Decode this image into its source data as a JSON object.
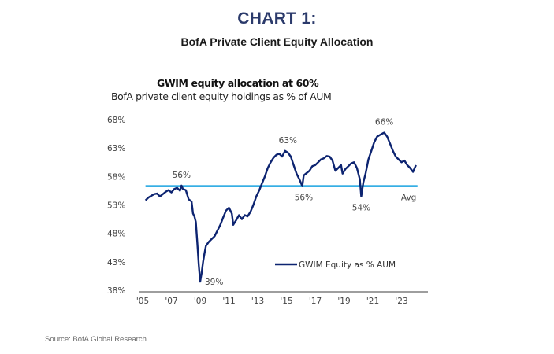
{
  "header": {
    "title": "CHART 1:",
    "subtitle": "BofA Private Client Equity Allocation"
  },
  "source": "Source: BofA Global Research",
  "chart_data": {
    "type": "line",
    "title": "GWIM equity allocation at 60%",
    "subtitle": "BofA private client equity holdings as % of AUM",
    "xlabel": "",
    "ylabel": "",
    "ylim": [
      38,
      68
    ],
    "xlim": [
      2005,
      2025
    ],
    "y_ticks": [
      38,
      43,
      48,
      53,
      58,
      63,
      68
    ],
    "y_tick_labels": [
      "38%",
      "43%",
      "48%",
      "53%",
      "58%",
      "63%",
      "68%"
    ],
    "x_ticks": [
      2005,
      2007,
      2009,
      2011,
      2013,
      2015,
      2017,
      2019,
      2021,
      2023
    ],
    "x_tick_labels": [
      "'05",
      "'07",
      "'09",
      "'11",
      "'13",
      "'15",
      "'17",
      "'19",
      "'21",
      "'23"
    ],
    "grid": false,
    "legend": {
      "entries": [
        "GWIM Equity as % AUM"
      ],
      "placement": "bottom-right"
    },
    "colors": {
      "series": "#0d2471",
      "average": "#1aa3e0",
      "axis": "#7f7f7f"
    },
    "average": {
      "name": "Avg",
      "value": 56.3
    },
    "annotations": [
      {
        "text": "56%",
        "x": 2007.7,
        "y": 56.4,
        "position": "above"
      },
      {
        "text": "39%",
        "x": 2009.0,
        "y": 39.5,
        "position": "right"
      },
      {
        "text": "63%",
        "x": 2015.1,
        "y": 62.5,
        "position": "above"
      },
      {
        "text": "56%",
        "x": 2016.2,
        "y": 56.3,
        "position": "below"
      },
      {
        "text": "54%",
        "x": 2020.2,
        "y": 54.5,
        "position": "below"
      },
      {
        "text": "66%",
        "x": 2021.8,
        "y": 65.7,
        "position": "above"
      },
      {
        "text": "Avg",
        "x": 2023.5,
        "y": 56.3,
        "position": "below"
      }
    ],
    "series": [
      {
        "name": "GWIM Equity as % AUM",
        "x": [
          2005.2,
          2005.4,
          2005.6,
          2005.8,
          2006.0,
          2006.2,
          2006.4,
          2006.6,
          2006.8,
          2007.0,
          2007.2,
          2007.4,
          2007.6,
          2007.7,
          2007.8,
          2008.0,
          2008.2,
          2008.4,
          2008.5,
          2008.6,
          2008.7,
          2008.8,
          2008.9,
          2009.0,
          2009.1,
          2009.2,
          2009.3,
          2009.4,
          2009.6,
          2009.8,
          2010.0,
          2010.2,
          2010.4,
          2010.6,
          2010.8,
          2011.0,
          2011.2,
          2011.3,
          2011.5,
          2011.7,
          2011.9,
          2012.1,
          2012.3,
          2012.5,
          2012.7,
          2012.9,
          2013.1,
          2013.3,
          2013.5,
          2013.7,
          2013.9,
          2014.1,
          2014.3,
          2014.5,
          2014.7,
          2014.9,
          2015.1,
          2015.3,
          2015.5,
          2015.7,
          2015.9,
          2016.1,
          2016.2,
          2016.4,
          2016.6,
          2016.8,
          2017.0,
          2017.2,
          2017.4,
          2017.6,
          2017.8,
          2018.0,
          2018.2,
          2018.4,
          2018.6,
          2018.8,
          2018.9,
          2019.1,
          2019.3,
          2019.5,
          2019.7,
          2019.9,
          2020.1,
          2020.2,
          2020.35,
          2020.5,
          2020.7,
          2020.9,
          2021.1,
          2021.3,
          2021.5,
          2021.7,
          2021.8,
          2022.0,
          2022.2,
          2022.4,
          2022.6,
          2022.8,
          2023.0,
          2023.2,
          2023.4,
          2023.6,
          2023.8,
          2024.0
        ],
        "values": [
          53.8,
          54.3,
          54.6,
          54.9,
          55.0,
          54.5,
          54.9,
          55.3,
          55.6,
          55.2,
          55.8,
          56.0,
          55.5,
          56.4,
          55.8,
          55.6,
          54.0,
          53.6,
          51.5,
          51.0,
          50.0,
          46.5,
          42.5,
          39.5,
          41.0,
          43.0,
          44.5,
          45.8,
          46.5,
          47.0,
          47.5,
          48.5,
          49.5,
          50.8,
          52.0,
          52.5,
          51.5,
          49.5,
          50.3,
          51.2,
          50.5,
          51.2,
          51.0,
          51.8,
          53.0,
          54.5,
          55.5,
          56.8,
          58.0,
          59.5,
          60.5,
          61.3,
          61.8,
          62.0,
          61.5,
          62.5,
          62.2,
          61.5,
          60.0,
          58.5,
          57.5,
          56.3,
          58.2,
          58.6,
          59.0,
          59.8,
          60.0,
          60.5,
          61.0,
          61.2,
          61.6,
          61.5,
          60.8,
          59.0,
          59.5,
          60.0,
          58.5,
          59.3,
          59.8,
          60.3,
          60.5,
          59.5,
          57.5,
          54.5,
          57.0,
          58.5,
          61.0,
          62.5,
          64.0,
          65.0,
          65.3,
          65.6,
          65.7,
          65.0,
          63.8,
          62.5,
          61.5,
          61.0,
          60.5,
          60.8,
          60.0,
          59.5,
          58.8,
          60.0
        ]
      }
    ]
  }
}
